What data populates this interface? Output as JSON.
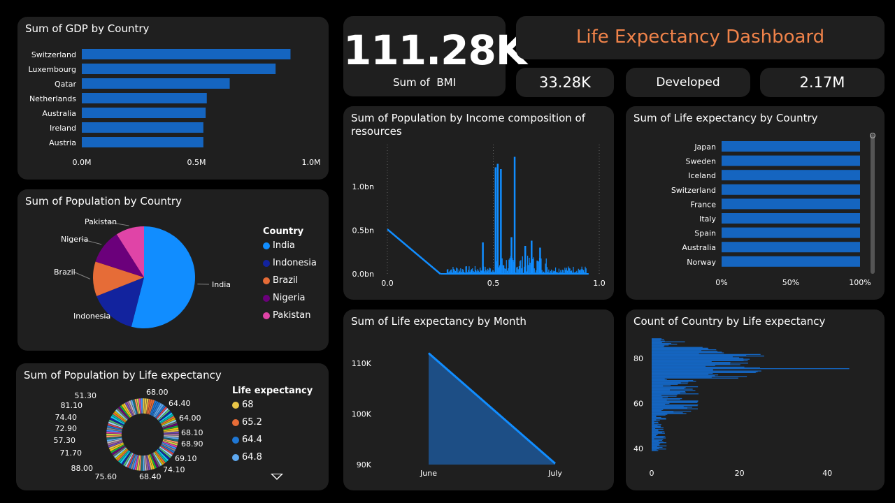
{
  "dashboard_title": "Life Expectancy Dashboard",
  "kpis": {
    "bmi": {
      "value": "111.28K",
      "label": "Sum of  BMI"
    },
    "card2": "33.28K",
    "card3": "Developed",
    "card4": "2.17M"
  },
  "colors": {
    "accent": "#1f77d4",
    "bar": "#1565c0",
    "title_orange": "#f0834a",
    "panel": "#1f1f1f"
  },
  "chart_data": [
    {
      "id": "gdp",
      "type": "bar",
      "title": "Sum of GDP by Country",
      "categories": [
        "Switzerland",
        "Luxembourg",
        "Qatar",
        "Netherlands",
        "Australia",
        "Ireland",
        "Austria"
      ],
      "values": [
        910000,
        845000,
        645000,
        545000,
        540000,
        530000,
        530000
      ],
      "xlim": [
        0,
        1000000
      ],
      "xticks": [
        {
          "v": 0,
          "label": "0.0M"
        },
        {
          "v": 500000,
          "label": "0.5M"
        },
        {
          "v": 1000000,
          "label": "1.0M"
        }
      ]
    },
    {
      "id": "pop_country",
      "type": "pie",
      "title": "Sum of Population by Country",
      "legend_title": "Country",
      "labels": [
        "India",
        "Indonesia",
        "Brazil",
        "Nigeria",
        "Pakistan"
      ],
      "values": [
        54,
        15,
        11,
        11,
        9
      ],
      "colors": [
        "#118dff",
        "#12239e",
        "#e66c37",
        "#6b007b",
        "#e044a7"
      ]
    },
    {
      "id": "pop_life",
      "type": "pie",
      "title": "Sum of Population by Life expectancy",
      "legend_title": "Life expectancy",
      "legend": [
        {
          "label": "68",
          "color": "#e8c547"
        },
        {
          "label": "65.2",
          "color": "#e66c37"
        },
        {
          "label": "64.4",
          "color": "#1f77d4"
        },
        {
          "label": "64.8",
          "color": "#5ea8f0"
        }
      ],
      "outer_labels_left": [
        "51.30",
        "81.10",
        "74.40",
        "72.90",
        "57.30",
        "71.70",
        "88.00",
        "75.60"
      ],
      "outer_labels_right": [
        "68.00",
        "64.40",
        "64.00",
        "68.10",
        "68.90",
        "69.10",
        "74.10",
        "68.40"
      ]
    },
    {
      "id": "pop_income",
      "type": "bar",
      "title": "Sum of Population by Income composition of resources",
      "xlim": [
        0,
        1
      ],
      "ylim": [
        0,
        1.4
      ],
      "xticks": [
        {
          "v": 0,
          "label": "0.0"
        },
        {
          "v": 0.5,
          "label": "0.5"
        },
        {
          "v": 1,
          "label": "1.0"
        }
      ],
      "yticks": [
        {
          "v": 0,
          "label": "0.0bn"
        },
        {
          "v": 0.5,
          "label": "0.5bn"
        },
        {
          "v": 1.0,
          "label": "1.0bn"
        }
      ],
      "line": {
        "x": [
          0,
          0.25
        ],
        "y": [
          0.51,
          0
        ]
      },
      "peaks": [
        {
          "x": 0.51,
          "y": 1.22
        },
        {
          "x": 0.52,
          "y": 1.26
        },
        {
          "x": 0.535,
          "y": 1.2
        },
        {
          "x": 0.6,
          "y": 1.34
        },
        {
          "x": 0.45,
          "y": 0.36
        },
        {
          "x": 0.585,
          "y": 0.42
        },
        {
          "x": 0.68,
          "y": 0.38
        },
        {
          "x": 0.65,
          "y": 0.32
        },
        {
          "x": 0.72,
          "y": 0.3
        }
      ]
    },
    {
      "id": "life_country",
      "type": "bar",
      "title": "Sum of Life expectancy by Country",
      "categories": [
        "Japan",
        "Sweden",
        "Iceland",
        "Switzerland",
        "France",
        "Italy",
        "Spain",
        "Australia",
        "Norway"
      ],
      "values": [
        100,
        100,
        100,
        100,
        100,
        100,
        100,
        100,
        100
      ],
      "xlim": [
        0,
        100
      ],
      "xticks": [
        {
          "v": 0,
          "label": "0%"
        },
        {
          "v": 50,
          "label": "50%"
        },
        {
          "v": 100,
          "label": "100%"
        }
      ]
    },
    {
      "id": "life_month",
      "type": "area",
      "title": "Sum of Life expectancy by Month",
      "categories": [
        "June",
        "July"
      ],
      "values": [
        112000,
        90200
      ],
      "ylim": [
        90000,
        114000
      ],
      "yticks": [
        {
          "v": 90000,
          "label": "90K"
        },
        {
          "v": 100000,
          "label": "100K"
        },
        {
          "v": 110000,
          "label": "110K"
        }
      ]
    },
    {
      "id": "count_life",
      "type": "bar",
      "title": "Count of Country by Life expectancy",
      "xlim": [
        0,
        50
      ],
      "ylim": [
        36,
        90
      ],
      "xticks": [
        {
          "v": 0,
          "label": "0"
        },
        {
          "v": 20,
          "label": "20"
        },
        {
          "v": 40,
          "label": "40"
        }
      ],
      "yticks": [
        {
          "v": 40,
          "label": "40"
        },
        {
          "v": 60,
          "label": "60"
        },
        {
          "v": 80,
          "label": "80"
        }
      ]
    }
  ]
}
